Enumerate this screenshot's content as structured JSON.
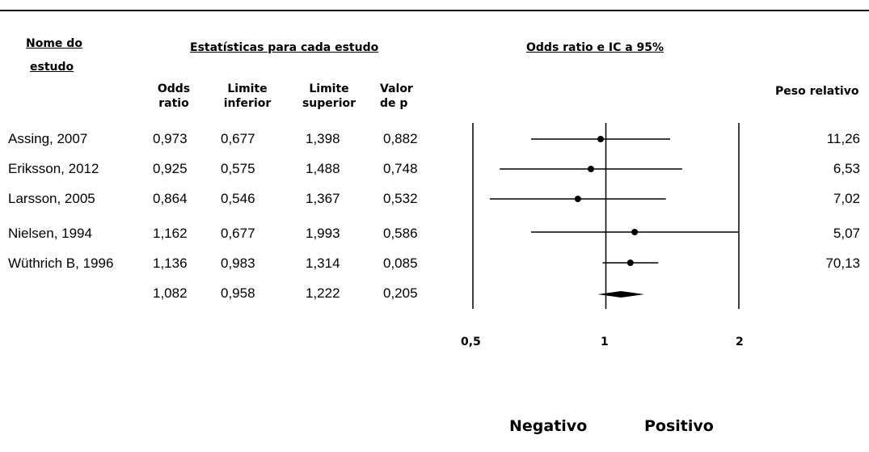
{
  "headers": {
    "study_line1": "Nome do",
    "study_line2": "estudo",
    "stats": "Estatísticas para cada estudo",
    "plot": "Odds ratio e IC a 95%",
    "or_line1": "Odds",
    "or_line2": "ratio",
    "lower_line1": "Limite",
    "lower_line2": "inferior",
    "upper_line1": "Limite",
    "upper_line2": "superior",
    "p_line1": "Valor",
    "p_line2": "de p",
    "weight": "Peso relativo"
  },
  "rows": [
    {
      "study": "Assing, 2007",
      "or": "0,973",
      "lower": "0,677",
      "upper": "1,398",
      "p": "0,882",
      "weight": "11,26"
    },
    {
      "study": "Eriksson, 2012",
      "or": "0,925",
      "lower": "0,575",
      "upper": "1,488",
      "p": "0,748",
      "weight": "6,53"
    },
    {
      "study": "Larsson, 2005",
      "or": "0,864",
      "lower": "0,546",
      "upper": "1,367",
      "p": "0,532",
      "weight": "7,02"
    },
    {
      "study": "Nielsen, 1994",
      "or": "1,162",
      "lower": "0,677",
      "upper": "1,993",
      "p": "0,586",
      "weight": "5,07"
    },
    {
      "study": "Wüthrich B, 1996",
      "or": "1,136",
      "lower": "0,983",
      "upper": "1,314",
      "p": "0,085",
      "weight": "70,13"
    }
  ],
  "summary": {
    "study": "",
    "or": "1,082",
    "lower": "0,958",
    "upper": "1,222",
    "p": "0,205"
  },
  "axis": {
    "ticks": [
      "0,5",
      "1",
      "2"
    ],
    "left_label": "Negativo",
    "right_label": "Positivo"
  },
  "chart_data": {
    "type": "forest",
    "scale": "log",
    "xlim": [
      0.5,
      2
    ],
    "ticks": [
      0.5,
      1,
      2
    ],
    "title": "Odds ratio e IC a 95%",
    "studies": [
      {
        "name": "Assing, 2007",
        "or": 0.973,
        "lower": 0.677,
        "upper": 1.398,
        "p": 0.882,
        "weight": 11.26
      },
      {
        "name": "Eriksson, 2012",
        "or": 0.925,
        "lower": 0.575,
        "upper": 1.488,
        "p": 0.748,
        "weight": 6.53
      },
      {
        "name": "Larsson, 2005",
        "or": 0.864,
        "lower": 0.546,
        "upper": 1.367,
        "p": 0.532,
        "weight": 7.02
      },
      {
        "name": "Nielsen, 1994",
        "or": 1.162,
        "lower": 0.677,
        "upper": 1.993,
        "p": 0.586,
        "weight": 5.07
      },
      {
        "name": "Wüthrich B, 1996",
        "or": 1.136,
        "lower": 0.983,
        "upper": 1.314,
        "p": 0.085,
        "weight": 70.13
      }
    ],
    "summary": {
      "or": 1.082,
      "lower": 0.958,
      "upper": 1.222,
      "p": 0.205
    },
    "direction_labels": [
      "Negativo",
      "Positivo"
    ]
  }
}
